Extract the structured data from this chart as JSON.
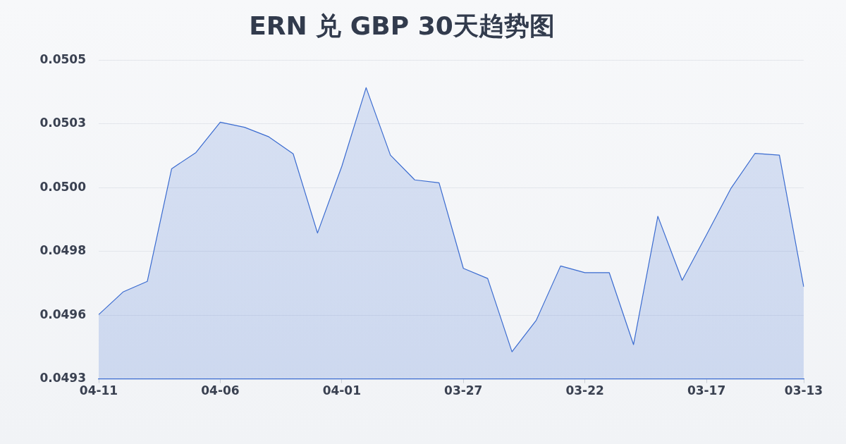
{
  "chart_data": {
    "type": "area",
    "title": "ERN 兑 GBP 30天趋势图",
    "categories": [
      "04-11",
      null,
      null,
      null,
      null,
      "04-06",
      null,
      null,
      null,
      null,
      "04-01",
      null,
      null,
      null,
      null,
      "03-27",
      null,
      null,
      null,
      null,
      "03-22",
      null,
      null,
      null,
      null,
      "03-17",
      null,
      null,
      null,
      "03-13"
    ],
    "series": [
      {
        "color": "#3a6bd0",
        "values": [
          0.049562,
          0.049647,
          0.049687,
          0.050111,
          0.050172,
          0.050286,
          0.050267,
          0.050231,
          0.050167,
          0.049869,
          0.05012,
          0.050416,
          0.050162,
          0.050069,
          0.050058,
          0.049736,
          0.049698,
          0.049422,
          0.049541,
          0.049745,
          0.04972,
          0.04972,
          0.049449,
          0.049932,
          0.049691,
          0.049862,
          0.050036,
          0.050169,
          0.050162,
          0.049667
        ]
      }
    ],
    "ylim": [
      0.04932,
      0.05052
    ],
    "yticks": [
      {
        "value": 0.04932,
        "label": "0.0493"
      },
      {
        "value": 0.04956,
        "label": "0.0496"
      },
      {
        "value": 0.0498,
        "label": "0.0498"
      },
      {
        "value": 0.05004,
        "label": "0.0500"
      },
      {
        "value": 0.05028,
        "label": "0.0503"
      },
      {
        "value": 0.05052,
        "label": "0.0505"
      }
    ],
    "grid": "y",
    "legend": false,
    "marker": "none",
    "line_style": "solid"
  }
}
